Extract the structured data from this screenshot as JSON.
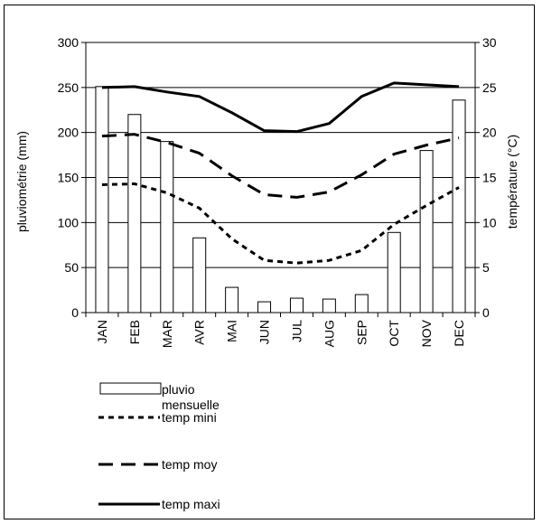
{
  "chart_data": {
    "type": "bar+line",
    "categories": [
      "JAN",
      "FEB",
      "MAR",
      "AVR",
      "MAI",
      "JUN",
      "JUL",
      "AUG",
      "SEP",
      "OCT",
      "NOV",
      "DEC"
    ],
    "ylabel_left": "pluviométrie (mm)",
    "ylabel_right": "température (°C)",
    "ylim_left": [
      0,
      300
    ],
    "ylim_right": [
      0,
      30
    ],
    "yticks_left": [
      0,
      50,
      100,
      150,
      200,
      250,
      300
    ],
    "yticks_right": [
      0,
      5,
      10,
      15,
      20,
      25,
      30
    ],
    "grid": true,
    "legend_position": "bottom-left",
    "bar_series": {
      "name": "pluvio mensuelle",
      "axis": "left",
      "values": [
        251,
        220,
        190,
        83,
        28,
        12,
        16,
        15,
        20,
        89,
        180,
        236
      ]
    },
    "line_series": [
      {
        "name": "temp mini",
        "axis": "right",
        "style": "dotted",
        "values": [
          14.2,
          14.3,
          13.3,
          11.6,
          8.2,
          5.8,
          5.5,
          5.8,
          6.9,
          9.8,
          11.9,
          13.9
        ]
      },
      {
        "name": "temp moy",
        "axis": "right",
        "style": "dashed",
        "values": [
          19.6,
          19.8,
          18.9,
          17.7,
          15.2,
          13.1,
          12.8,
          13.4,
          15.3,
          17.6,
          18.6,
          19.4
        ]
      },
      {
        "name": "temp maxi",
        "axis": "right",
        "style": "solid",
        "values": [
          25.0,
          25.1,
          24.5,
          24.0,
          22.2,
          20.2,
          20.1,
          21.0,
          24.0,
          25.5,
          25.3,
          25.1
        ]
      }
    ]
  },
  "legend": {
    "pluvio_line1": "pluvio",
    "pluvio_line2": "mensuelle",
    "temp_mini": "temp mini",
    "temp_moy": "temp moy",
    "temp_maxi": "temp maxi"
  }
}
